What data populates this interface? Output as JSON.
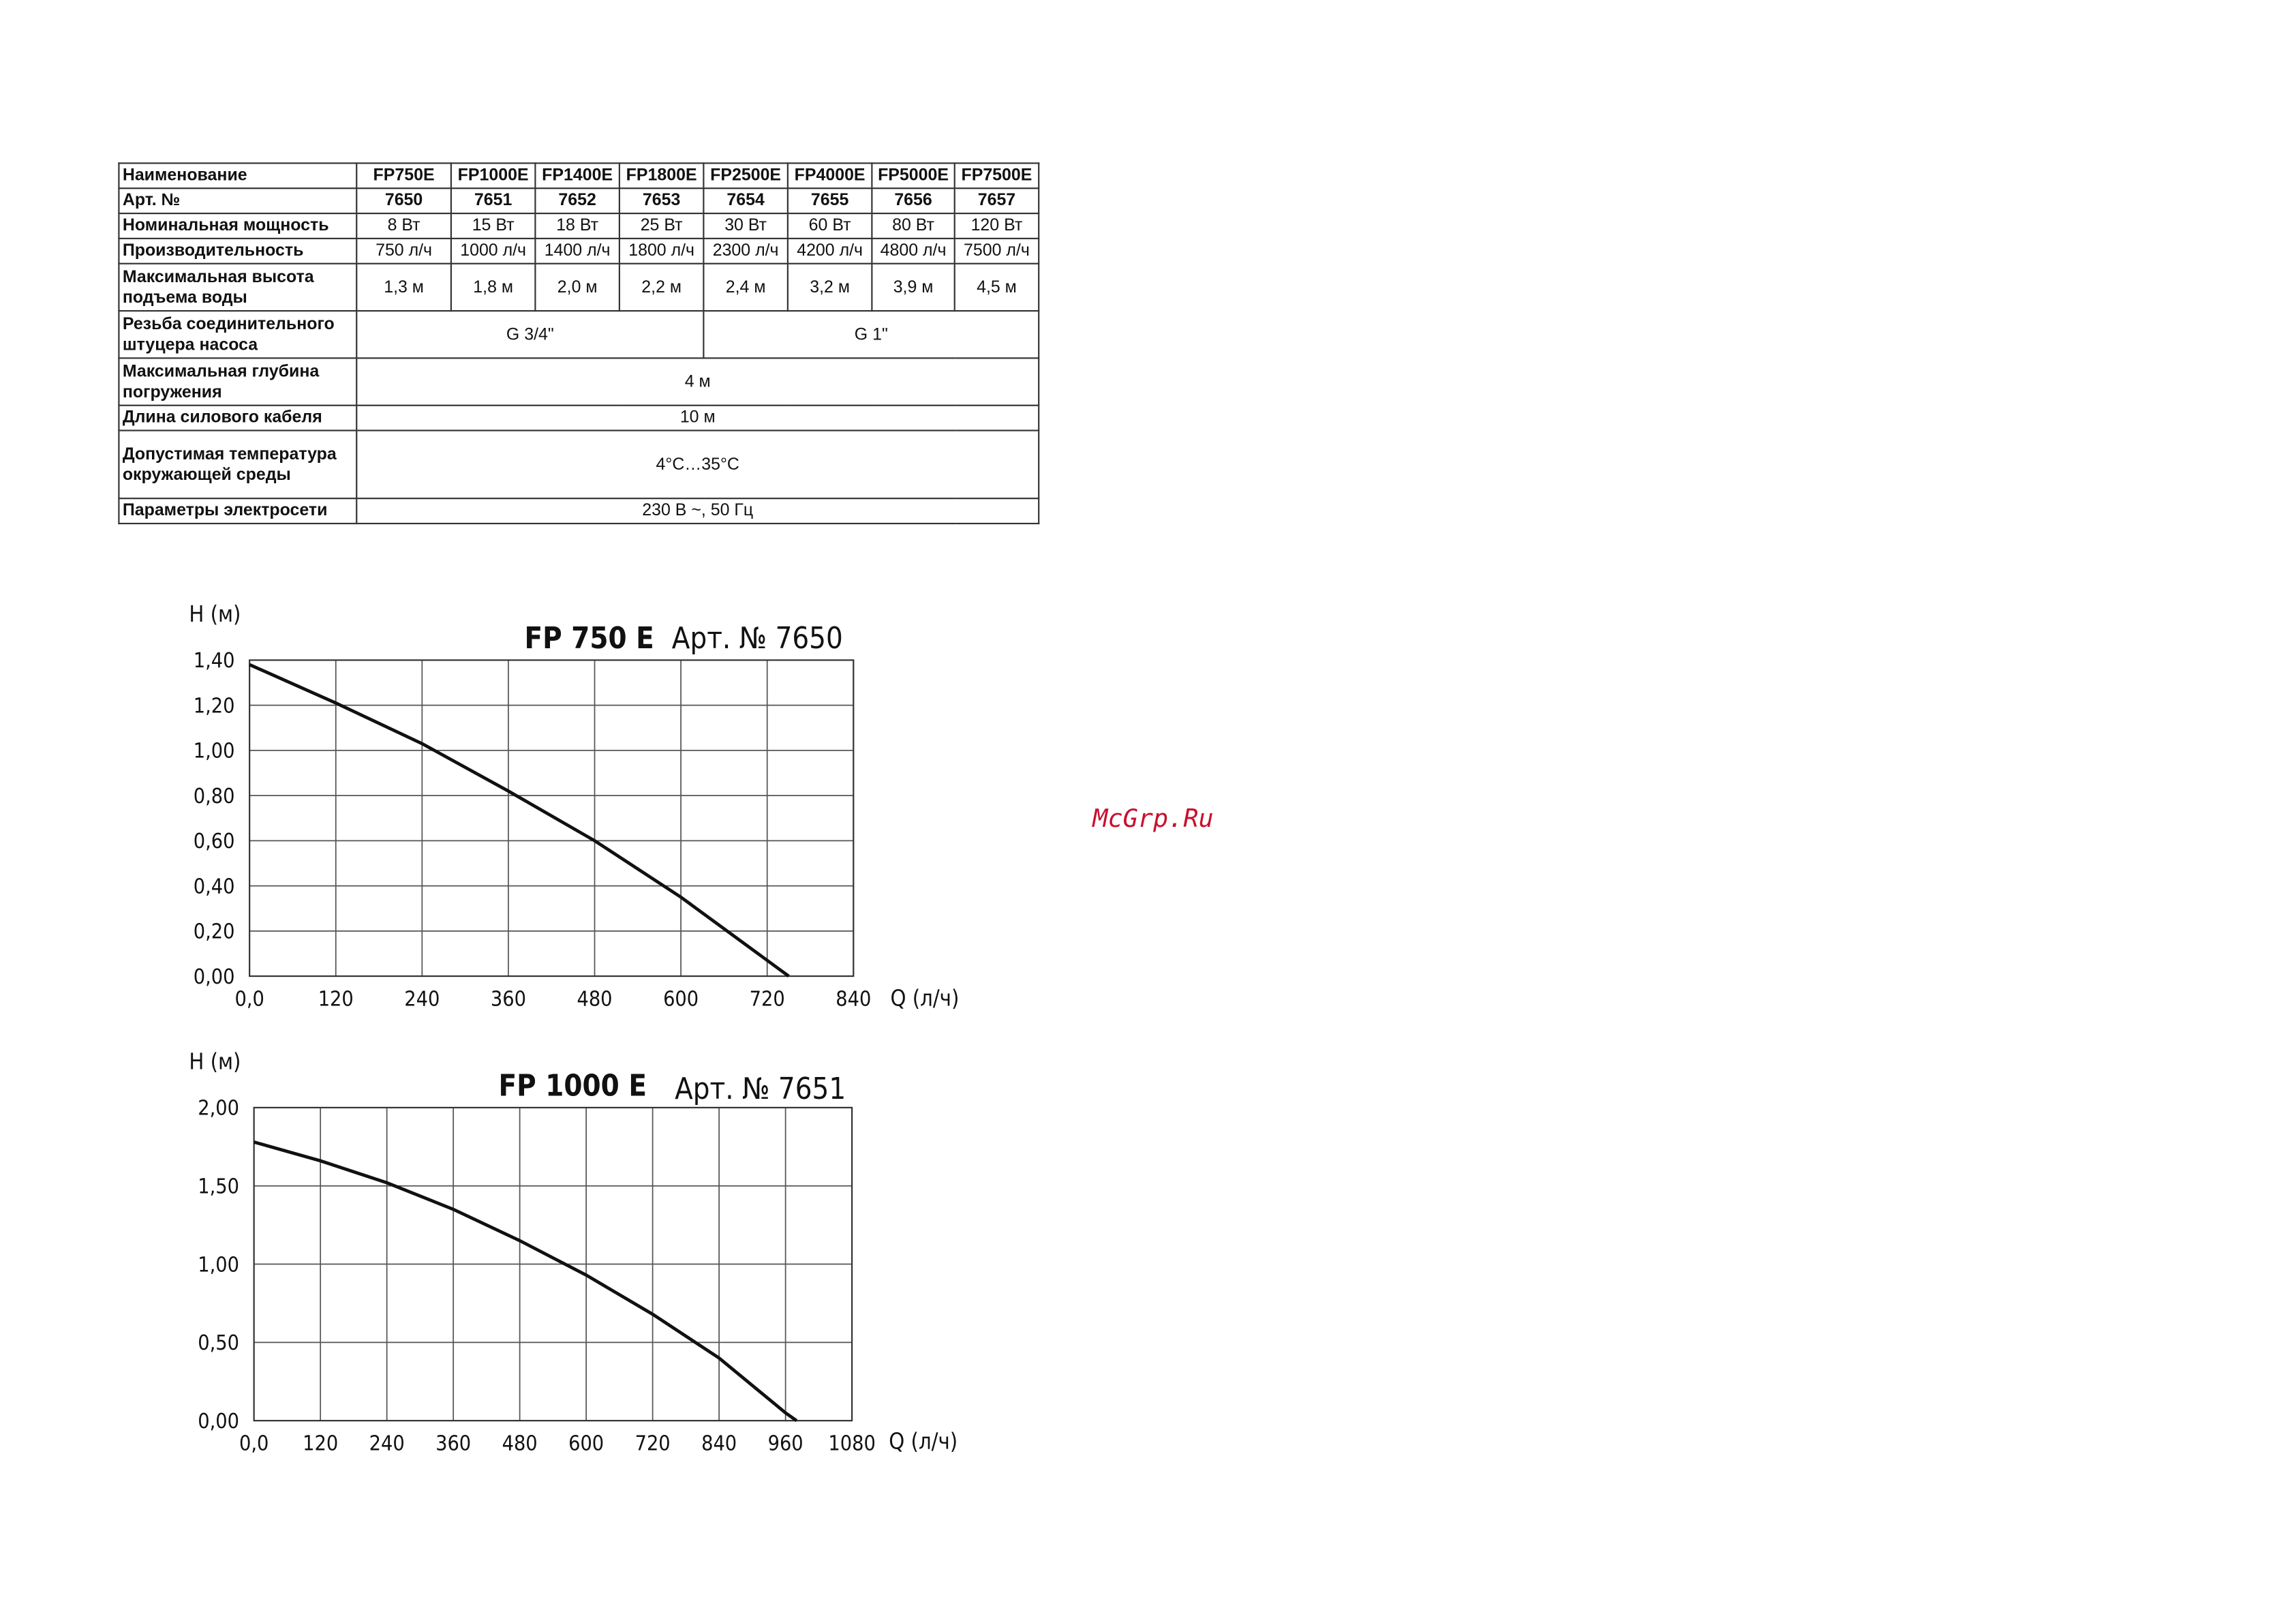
{
  "table": {
    "header": [
      "Наименование",
      "FP750E",
      "FP1000E",
      "FP1400E",
      "FP1800E",
      "FP2500E",
      "FP4000E",
      "FP5000E",
      "FP7500E"
    ],
    "rows": [
      {
        "label": "Арт. №",
        "cells": [
          "7650",
          "7651",
          "7652",
          "7653",
          "7654",
          "7655",
          "7656",
          "7657"
        ]
      },
      {
        "label": "Номинальная мощность",
        "cells": [
          "8 Вт",
          "15 Вт",
          "18 Вт",
          "25 Вт",
          "30 Вт",
          "60 Вт",
          "80 Вт",
          "120 Вт"
        ]
      },
      {
        "label": "Производительность",
        "cells": [
          "750 л/ч",
          "1000 л/ч",
          "1400 л/ч",
          "1800 л/ч",
          "2300 л/ч",
          "4200 л/ч",
          "4800 л/ч",
          "7500 л/ч"
        ]
      },
      {
        "label": "Максимальная высота подъема воды",
        "cells": [
          "1,3 м",
          "1,8 м",
          "2,0 м",
          "2,2 м",
          "2,4 м",
          "3,2 м",
          "3,9 м",
          "4,5 м"
        ]
      },
      {
        "label": "Резьба соединительного штуцера насоса",
        "cells": [
          "G 3/4\"",
          "G 1\""
        ]
      },
      {
        "label": "Максимальная глубина погружения",
        "cells": [
          "4 м"
        ]
      },
      {
        "label": "Длина силового кабеля",
        "cells": [
          "10 м"
        ]
      },
      {
        "label": "Допустимая температура окружающей среды",
        "cells": [
          "4°C…35°C"
        ]
      },
      {
        "label": "Параметры электросети",
        "cells": [
          "230 В ~, 50 Гц"
        ]
      }
    ]
  },
  "chart_data": [
    {
      "type": "line",
      "title": "FP 750 E",
      "subtitle": "Арт. № 7650",
      "y_label": "H (м)",
      "x_label": "Q (л/ч)",
      "x": [
        0,
        120,
        240,
        360,
        480,
        600,
        720,
        750
      ],
      "series": [
        {
          "color": "#111111",
          "values": [
            1.38,
            1.21,
            1.03,
            0.82,
            0.6,
            0.35,
            0.07,
            0
          ]
        }
      ],
      "xlim": [
        0,
        840
      ],
      "xticks": [
        {
          "value": 0,
          "label": "0,0"
        },
        120,
        240,
        360,
        480,
        600,
        720,
        840
      ],
      "ylim": [
        0,
        1.4
      ],
      "yticks": [
        {
          "value": 0,
          "label": "0,00"
        },
        {
          "value": 0.2,
          "label": "0,20"
        },
        {
          "value": 0.4,
          "label": "0,40"
        },
        {
          "value": 0.6,
          "label": "0,60"
        },
        {
          "value": 0.8,
          "label": "0,80"
        },
        {
          "value": 1,
          "label": "1,00"
        },
        {
          "value": 1.2,
          "label": "1,20"
        },
        {
          "value": 1.4,
          "label": "1,40"
        }
      ],
      "grid": true
    },
    {
      "type": "line",
      "title": "FP 1000 E",
      "subtitle": "Арт. № 7651",
      "y_label": "H (м)",
      "x_label": "Q (л/ч)",
      "x": [
        0,
        120,
        240,
        360,
        480,
        600,
        720,
        840,
        960,
        980
      ],
      "series": [
        {
          "color": "#111111",
          "values": [
            1.78,
            1.66,
            1.52,
            1.35,
            1.15,
            0.93,
            0.68,
            0.4,
            0.05,
            0
          ]
        }
      ],
      "xlim": [
        0,
        1080
      ],
      "xticks": [
        {
          "value": 0,
          "label": "0,0"
        },
        120,
        240,
        360,
        480,
        600,
        720,
        840,
        960,
        1080
      ],
      "ylim": [
        0,
        2
      ],
      "yticks": [
        {
          "value": 0,
          "label": "0,00"
        },
        {
          "value": 0.5,
          "label": "0,50"
        },
        {
          "value": 1,
          "label": "1,00"
        },
        {
          "value": 1.5,
          "label": "1,50"
        },
        {
          "value": 2,
          "label": "2,00"
        }
      ],
      "grid": true
    }
  ],
  "watermark": "McGrp.Ru"
}
